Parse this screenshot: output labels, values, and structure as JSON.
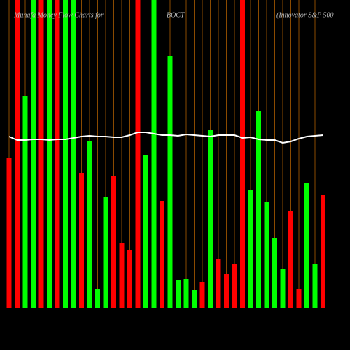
{
  "chart_data": {
    "type": "bar",
    "title": "Munafa Money Flow Charts for",
    "subtitle": "BOCT",
    "note": "(Innovator S&P 500",
    "values": [
      215,
      440,
      303,
      440,
      440,
      440,
      440,
      440,
      440,
      193,
      238,
      27,
      158,
      188,
      93,
      83,
      440,
      218,
      440,
      153,
      360,
      40,
      42,
      25,
      37,
      254,
      70,
      48,
      63,
      440,
      168,
      282,
      152,
      100,
      56,
      138,
      27,
      179,
      63,
      161
    ],
    "colors": [
      "#ff0000",
      "#ff0000",
      "#00ff00",
      "#00ff00",
      "#ff0000",
      "#00ff00",
      "#ff0000",
      "#00ff00",
      "#00ff00",
      "#ff0000",
      "#00ff00",
      "#00ff00",
      "#00ff00",
      "#ff0000",
      "#ff0000",
      "#ff0000",
      "#ff0000",
      "#00ff00",
      "#00ff00",
      "#ff0000",
      "#00ff00",
      "#00ff00",
      "#00ff00",
      "#00ff00",
      "#ff0000",
      "#00ff00",
      "#ff0000",
      "#ff0000",
      "#ff0000",
      "#ff0000",
      "#00ff00",
      "#00ff00",
      "#00ff00",
      "#00ff00",
      "#00ff00",
      "#ff0000",
      "#ff0000",
      "#00ff00",
      "#00ff00",
      "#ff0000"
    ],
    "line": {
      "color": "#ffffff",
      "values": [
        245,
        240,
        240,
        241,
        241,
        240,
        241,
        241,
        243,
        245,
        246,
        245,
        245,
        244,
        244,
        247,
        251,
        251,
        249,
        247,
        247,
        246,
        248,
        247,
        246,
        245,
        247,
        247,
        247,
        243,
        244,
        241,
        240,
        240,
        236,
        238,
        242,
        245,
        246,
        247
      ]
    },
    "ylim": [
      0,
      440
    ]
  }
}
